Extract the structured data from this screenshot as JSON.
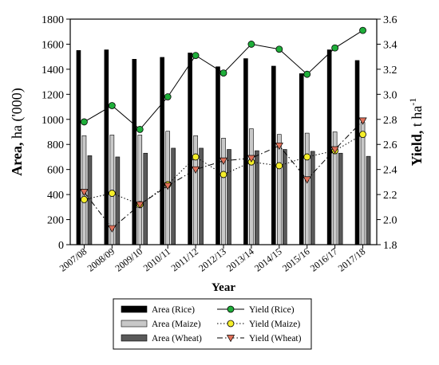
{
  "chart_data": {
    "type": "bar",
    "categories": [
      "2007/08",
      "2008/09",
      "2009/10",
      "2010/11",
      "2011/12",
      "2012/13",
      "2013/14",
      "2014/15",
      "2015/16",
      "2016/17",
      "2017/18"
    ],
    "xlabel": "Year",
    "ylabel": "Area, ha ('000)",
    "ylabel_bold": "Area,",
    "ylabel_rest": " ha ('000)",
    "y2label": "Yield, t ha",
    "y2label_bold": "Yield,",
    "y2label_rest": " t ha",
    "y2label_sup": "-1",
    "ylim": [
      0,
      1800
    ],
    "yticks": [
      0,
      200,
      400,
      600,
      800,
      1000,
      1200,
      1400,
      1600,
      1800
    ],
    "y2lim": [
      1.8,
      3.6
    ],
    "y2ticks": [
      "1.8",
      "2.0",
      "2.2",
      "2.4",
      "2.6",
      "2.8",
      "3.0",
      "3.2",
      "3.4",
      "3.6"
    ],
    "bar_series": [
      {
        "name": "Area (Rice)",
        "color": "#000000",
        "values": [
          1550,
          1555,
          1480,
          1495,
          1530,
          1420,
          1485,
          1425,
          1365,
          1555,
          1470
        ]
      },
      {
        "name": "Area (Maize)",
        "color": "#c8c8c8",
        "values": [
          870,
          875,
          875,
          905,
          870,
          850,
          925,
          880,
          890,
          900,
          975
        ]
      },
      {
        "name": "Area (Wheat)",
        "color": "#595959",
        "values": [
          710,
          700,
          730,
          770,
          770,
          760,
          750,
          760,
          745,
          730,
          705
        ]
      }
    ],
    "line_series": [
      {
        "name": "Yield (Rice)",
        "color": "#1fae3a",
        "line_style": "solid",
        "marker": "circle",
        "values": [
          2.78,
          2.91,
          2.72,
          2.98,
          3.31,
          3.17,
          3.4,
          3.36,
          3.16,
          3.37,
          3.51
        ]
      },
      {
        "name": "Yield (Maize)",
        "color": "#f5ee2a",
        "line_style": "dotted",
        "marker": "circle",
        "values": [
          2.16,
          2.21,
          2.12,
          2.28,
          2.5,
          2.36,
          2.46,
          2.43,
          2.5,
          2.55,
          2.68
        ]
      },
      {
        "name": "Yield (Wheat)",
        "color": "#e0715a",
        "line_style": "dashdot",
        "marker": "triangle-down",
        "values": [
          2.22,
          1.93,
          2.12,
          2.27,
          2.4,
          2.47,
          2.49,
          2.59,
          2.32,
          2.56,
          2.79
        ]
      }
    ],
    "legend_position": "bottom-center"
  }
}
